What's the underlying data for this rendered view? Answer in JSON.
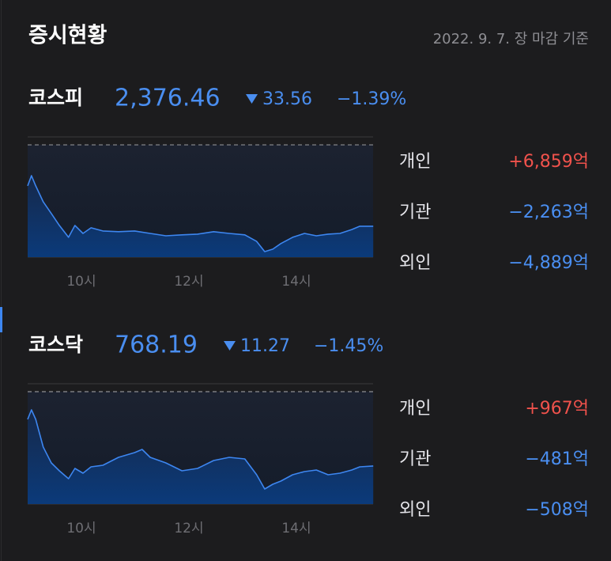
{
  "header": {
    "title": "증시현황",
    "date": "2022. 9. 7. 장 마감 기준"
  },
  "markets": [
    {
      "name": "코스피",
      "value": "2,376.46",
      "change": "33.56",
      "change_pct": "−1.39%",
      "color": "#4a8ef0",
      "investors": [
        {
          "label": "개인",
          "amount": "+6,859억",
          "color": "#f0524c"
        },
        {
          "label": "기관",
          "amount": "−2,263억",
          "color": "#4a8ef0"
        },
        {
          "label": "외인",
          "amount": "−4,889억",
          "color": "#4a8ef0"
        }
      ],
      "chart": {
        "type": "line",
        "color": "#3d86f0",
        "x": [
          9.0,
          9.07,
          9.15,
          9.29,
          9.44,
          9.59,
          9.76,
          9.88,
          10.03,
          10.18,
          10.4,
          10.69,
          10.99,
          11.28,
          11.57,
          11.87,
          12.16,
          12.46,
          12.75,
          13.04,
          13.26,
          13.41,
          13.56,
          13.71,
          13.93,
          14.15,
          14.37,
          14.59,
          14.81,
          15.03,
          15.18,
          15.43
        ],
        "values": [
          2393.1,
          2397.3,
          2393.1,
          2386.5,
          2381.7,
          2376.8,
          2371.9,
          2376.8,
          2373.5,
          2375.8,
          2374.5,
          2374.2,
          2374.5,
          2373.5,
          2372.5,
          2372.9,
          2373.2,
          2374.2,
          2373.5,
          2372.9,
          2370.2,
          2366.0,
          2367.0,
          2369.3,
          2371.9,
          2373.5,
          2372.5,
          2373.2,
          2373.5,
          2375.1,
          2376.46,
          2376.46
        ],
        "reference": 2410.02,
        "xlim": [
          9,
          15.5
        ],
        "ylim": [
          2363.7,
          2413.3
        ],
        "xticks": [
          {
            "value": 10,
            "label": "10시"
          },
          {
            "value": 12,
            "label": "12시"
          },
          {
            "value": 14,
            "label": "14시"
          }
        ]
      }
    },
    {
      "name": "코스닥",
      "value": "768.19",
      "change": "11.27",
      "change_pct": "−1.45%",
      "color": "#4a8ef0",
      "investors": [
        {
          "label": "개인",
          "amount": "+967억",
          "color": "#f0524c"
        },
        {
          "label": "기관",
          "amount": "−481억",
          "color": "#4a8ef0"
        },
        {
          "label": "외인",
          "amount": "−508억",
          "color": "#4a8ef0"
        }
      ],
      "chart": {
        "type": "line",
        "color": "#3d86f0",
        "x": [
          9.0,
          9.07,
          9.15,
          9.29,
          9.44,
          9.59,
          9.76,
          9.88,
          10.03,
          10.18,
          10.4,
          10.69,
          10.99,
          11.13,
          11.28,
          11.57,
          11.87,
          12.16,
          12.46,
          12.75,
          13.04,
          13.26,
          13.41,
          13.56,
          13.71,
          13.93,
          14.15,
          14.37,
          14.59,
          14.81,
          15.03,
          15.18,
          15.43
        ],
        "values": [
          775.26,
          776.7,
          775.26,
          771.06,
          768.66,
          767.46,
          766.26,
          767.82,
          767.1,
          768.06,
          768.3,
          769.5,
          770.22,
          770.7,
          769.5,
          768.66,
          767.46,
          767.82,
          769.02,
          769.5,
          769.26,
          766.86,
          764.7,
          765.42,
          765.9,
          766.86,
          767.34,
          767.58,
          766.86,
          767.1,
          767.58,
          768.06,
          768.19
        ],
        "reference": 779.46,
        "xlim": [
          9,
          15.5
        ],
        "ylim": [
          762.42,
          780.66
        ],
        "xticks": [
          {
            "value": 10,
            "label": "10시"
          },
          {
            "value": 12,
            "label": "12시"
          },
          {
            "value": 14,
            "label": "14시"
          }
        ]
      }
    }
  ]
}
